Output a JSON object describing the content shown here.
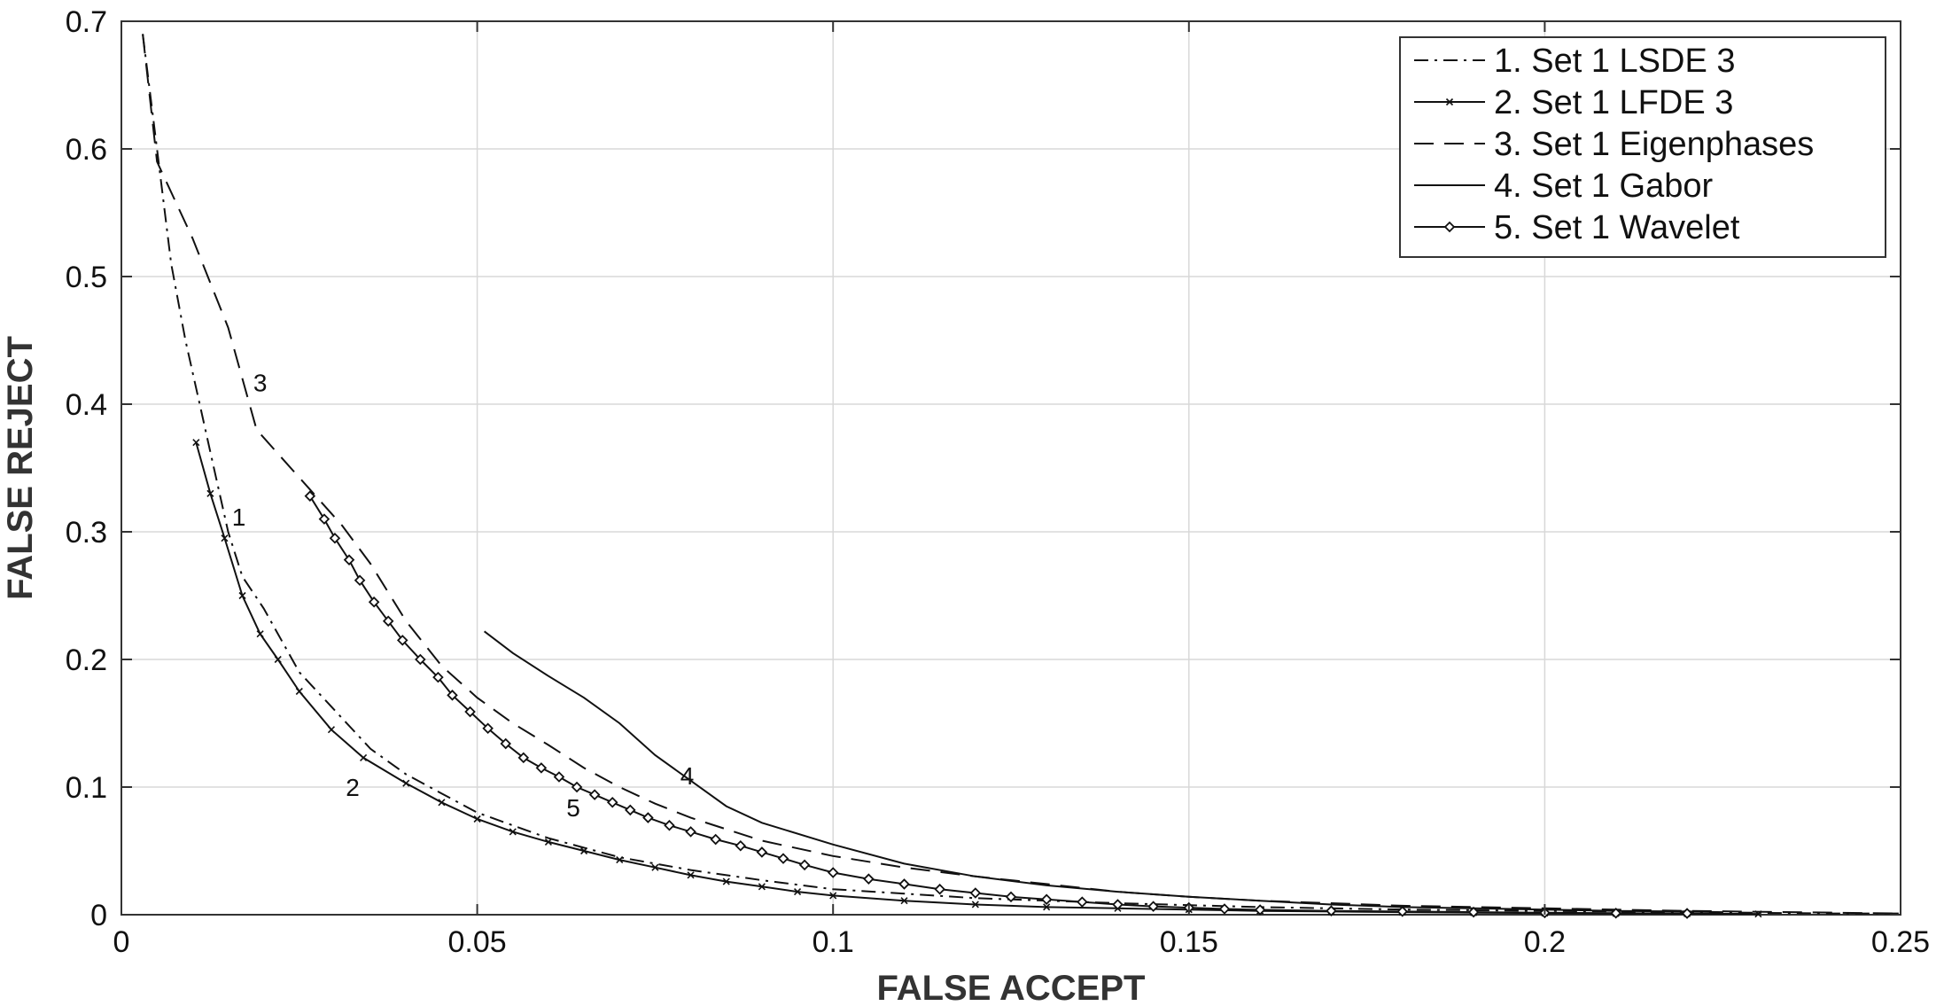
{
  "chart_data": {
    "type": "line",
    "title": "",
    "xlabel": "FALSE ACCEPT",
    "ylabel": "FALSE REJECT",
    "xlim": [
      0,
      0.25
    ],
    "ylim": [
      0,
      0.7
    ],
    "grid": true,
    "legend_position": "top-right",
    "x_ticks": [
      {
        "value": 0,
        "label": "0"
      },
      {
        "value": 0.05,
        "label": "0.05"
      },
      {
        "value": 0.1,
        "label": "0.1"
      },
      {
        "value": 0.15,
        "label": "0.15"
      },
      {
        "value": 0.2,
        "label": "0.2"
      },
      {
        "value": 0.25,
        "label": "0.25"
      }
    ],
    "y_ticks": [
      {
        "value": 0,
        "label": "0"
      },
      {
        "value": 0.1,
        "label": "0.1"
      },
      {
        "value": 0.2,
        "label": "0.2"
      },
      {
        "value": 0.3,
        "label": "0.3"
      },
      {
        "value": 0.4,
        "label": "0.4"
      },
      {
        "value": 0.5,
        "label": "0.5"
      },
      {
        "value": 0.6,
        "label": "0.6"
      },
      {
        "value": 0.7,
        "label": "0.7"
      }
    ],
    "series": [
      {
        "name": "1. Set 1 LSDE 3",
        "style": "dashdot",
        "marker": "none",
        "points": [
          [
            0.003,
            0.69
          ],
          [
            0.005,
            0.6
          ],
          [
            0.007,
            0.51
          ],
          [
            0.009,
            0.45
          ],
          [
            0.011,
            0.4
          ],
          [
            0.013,
            0.35
          ],
          [
            0.015,
            0.3
          ],
          [
            0.017,
            0.265
          ],
          [
            0.02,
            0.24
          ],
          [
            0.025,
            0.19
          ],
          [
            0.03,
            0.16
          ],
          [
            0.035,
            0.13
          ],
          [
            0.04,
            0.11
          ],
          [
            0.045,
            0.095
          ],
          [
            0.05,
            0.08
          ],
          [
            0.06,
            0.06
          ],
          [
            0.07,
            0.045
          ],
          [
            0.08,
            0.035
          ],
          [
            0.09,
            0.027
          ],
          [
            0.1,
            0.02
          ],
          [
            0.12,
            0.013
          ],
          [
            0.14,
            0.009
          ],
          [
            0.16,
            0.006
          ],
          [
            0.18,
            0.004
          ],
          [
            0.2,
            0.003
          ],
          [
            0.22,
            0.002
          ],
          [
            0.24,
            0.001
          ],
          [
            0.25,
            0.001
          ]
        ]
      },
      {
        "name": "2. Set 1 LFDE 3",
        "style": "solid",
        "marker": "x",
        "points": [
          [
            0.0105,
            0.37
          ],
          [
            0.0125,
            0.33
          ],
          [
            0.0145,
            0.295
          ],
          [
            0.017,
            0.25
          ],
          [
            0.0195,
            0.22
          ],
          [
            0.022,
            0.2
          ],
          [
            0.025,
            0.175
          ],
          [
            0.0295,
            0.145
          ],
          [
            0.034,
            0.123
          ],
          [
            0.04,
            0.103
          ],
          [
            0.045,
            0.088
          ],
          [
            0.05,
            0.075
          ],
          [
            0.055,
            0.065
          ],
          [
            0.06,
            0.057
          ],
          [
            0.065,
            0.05
          ],
          [
            0.07,
            0.043
          ],
          [
            0.075,
            0.037
          ],
          [
            0.08,
            0.031
          ],
          [
            0.085,
            0.026
          ],
          [
            0.09,
            0.022
          ],
          [
            0.095,
            0.018
          ],
          [
            0.1,
            0.015
          ],
          [
            0.11,
            0.011
          ],
          [
            0.12,
            0.008
          ],
          [
            0.13,
            0.006
          ],
          [
            0.14,
            0.005
          ],
          [
            0.15,
            0.004
          ],
          [
            0.16,
            0.003
          ],
          [
            0.17,
            0.0025
          ],
          [
            0.18,
            0.002
          ],
          [
            0.19,
            0.0016
          ],
          [
            0.2,
            0.0013
          ],
          [
            0.21,
            0.001
          ],
          [
            0.22,
            0.0008
          ],
          [
            0.23,
            0.0006
          ]
        ]
      },
      {
        "name": "3. Set 1 Eigenphases",
        "style": "dashed",
        "marker": "none",
        "points": [
          [
            0.003,
            0.69
          ],
          [
            0.005,
            0.59
          ],
          [
            0.01,
            0.53
          ],
          [
            0.015,
            0.46
          ],
          [
            0.019,
            0.38
          ],
          [
            0.023,
            0.355
          ],
          [
            0.027,
            0.33
          ],
          [
            0.031,
            0.305
          ],
          [
            0.035,
            0.275
          ],
          [
            0.04,
            0.23
          ],
          [
            0.045,
            0.195
          ],
          [
            0.05,
            0.17
          ],
          [
            0.055,
            0.15
          ],
          [
            0.06,
            0.133
          ],
          [
            0.065,
            0.115
          ],
          [
            0.07,
            0.1
          ],
          [
            0.075,
            0.087
          ],
          [
            0.08,
            0.076
          ],
          [
            0.09,
            0.058
          ],
          [
            0.1,
            0.046
          ],
          [
            0.11,
            0.037
          ],
          [
            0.12,
            0.03
          ],
          [
            0.13,
            0.024
          ],
          [
            0.14,
            0.018
          ],
          [
            0.15,
            0.014
          ],
          [
            0.16,
            0.011
          ],
          [
            0.18,
            0.007
          ],
          [
            0.2,
            0.005
          ],
          [
            0.22,
            0.003
          ],
          [
            0.25,
            0.001
          ]
        ]
      },
      {
        "name": "4. Set 1 Gabor",
        "style": "solid",
        "marker": "none",
        "points": [
          [
            0.051,
            0.222
          ],
          [
            0.055,
            0.205
          ],
          [
            0.06,
            0.187
          ],
          [
            0.065,
            0.17
          ],
          [
            0.07,
            0.15
          ],
          [
            0.075,
            0.125
          ],
          [
            0.08,
            0.105
          ],
          [
            0.085,
            0.085
          ],
          [
            0.09,
            0.072
          ],
          [
            0.1,
            0.055
          ],
          [
            0.11,
            0.04
          ],
          [
            0.12,
            0.03
          ],
          [
            0.13,
            0.023
          ],
          [
            0.14,
            0.018
          ],
          [
            0.15,
            0.014
          ],
          [
            0.16,
            0.011
          ],
          [
            0.17,
            0.008
          ],
          [
            0.18,
            0.006
          ],
          [
            0.19,
            0.005
          ],
          [
            0.2,
            0.004
          ],
          [
            0.21,
            0.003
          ],
          [
            0.22,
            0.0025
          ],
          [
            0.225,
            0.002
          ]
        ]
      },
      {
        "name": "5. Set 1 Wavelet",
        "style": "solid",
        "marker": "diamond",
        "points": [
          [
            0.0265,
            0.328
          ],
          [
            0.0285,
            0.31
          ],
          [
            0.03,
            0.295
          ],
          [
            0.032,
            0.278
          ],
          [
            0.0335,
            0.262
          ],
          [
            0.0355,
            0.245
          ],
          [
            0.0375,
            0.23
          ],
          [
            0.0395,
            0.215
          ],
          [
            0.042,
            0.2
          ],
          [
            0.0445,
            0.186
          ],
          [
            0.0465,
            0.172
          ],
          [
            0.049,
            0.159
          ],
          [
            0.0515,
            0.146
          ],
          [
            0.054,
            0.134
          ],
          [
            0.0565,
            0.123
          ],
          [
            0.059,
            0.115
          ],
          [
            0.0615,
            0.108
          ],
          [
            0.064,
            0.1
          ],
          [
            0.0665,
            0.094
          ],
          [
            0.069,
            0.088
          ],
          [
            0.0715,
            0.082
          ],
          [
            0.074,
            0.076
          ],
          [
            0.077,
            0.07
          ],
          [
            0.08,
            0.065
          ],
          [
            0.0835,
            0.059
          ],
          [
            0.087,
            0.054
          ],
          [
            0.09,
            0.049
          ],
          [
            0.093,
            0.044
          ],
          [
            0.096,
            0.039
          ],
          [
            0.1,
            0.033
          ],
          [
            0.105,
            0.028
          ],
          [
            0.11,
            0.024
          ],
          [
            0.115,
            0.02
          ],
          [
            0.12,
            0.017
          ],
          [
            0.125,
            0.014
          ],
          [
            0.13,
            0.012
          ],
          [
            0.135,
            0.01
          ],
          [
            0.14,
            0.008
          ],
          [
            0.145,
            0.0065
          ],
          [
            0.15,
            0.0055
          ],
          [
            0.155,
            0.0045
          ],
          [
            0.16,
            0.0038
          ],
          [
            0.17,
            0.003
          ],
          [
            0.18,
            0.0025
          ],
          [
            0.19,
            0.002
          ],
          [
            0.2,
            0.0015
          ],
          [
            0.21,
            0.0012
          ],
          [
            0.22,
            0.001
          ]
        ]
      }
    ],
    "annotations": [
      {
        "text": "3",
        "x": 0.0195,
        "y": 0.41
      },
      {
        "text": "1",
        "x": 0.0165,
        "y": 0.305
      },
      {
        "text": "2",
        "x": 0.0325,
        "y": 0.093
      },
      {
        "text": "5",
        "x": 0.0635,
        "y": 0.077
      },
      {
        "text": "4",
        "x": 0.0795,
        "y": 0.102
      }
    ]
  }
}
